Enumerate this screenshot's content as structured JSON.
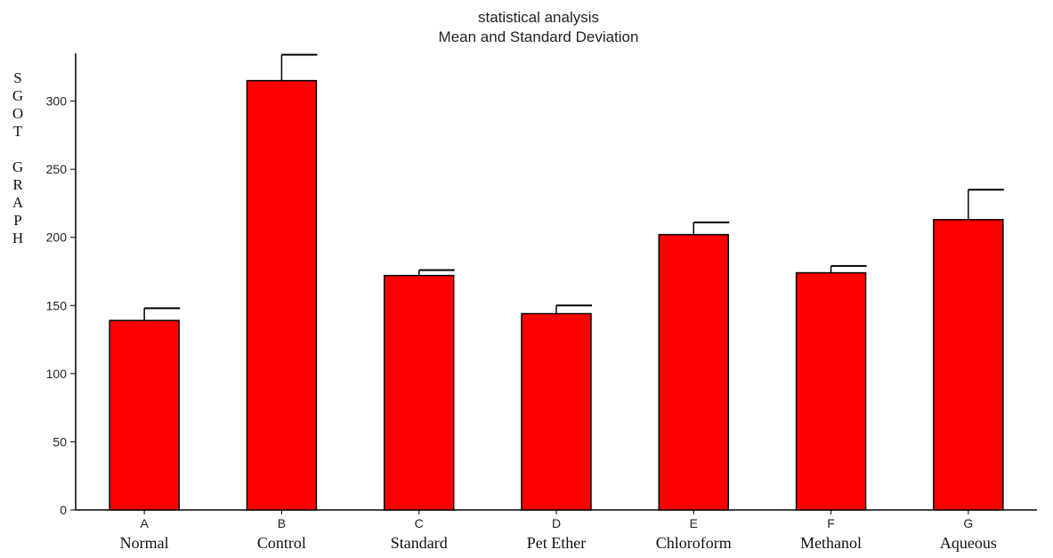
{
  "chart_data": {
    "type": "bar",
    "title": [
      "statistical analysis",
      "Mean and Standard Deviation"
    ],
    "ylabel": [
      "SGOT",
      "GRAPH"
    ],
    "xlabel": "",
    "categories": [
      "A",
      "B",
      "C",
      "D",
      "E",
      "F",
      "G"
    ],
    "category_names": [
      "Normal",
      "Control",
      "Standard",
      "Pet Ether",
      "Chloroform",
      "Methanol",
      "Aqueous"
    ],
    "series": [
      {
        "values": [
          139,
          315,
          172,
          144,
          202,
          174,
          213
        ],
        "errors": [
          9,
          19,
          4,
          6,
          9,
          5,
          22
        ],
        "color": "#ff0000"
      }
    ],
    "yticks": [
      0,
      50,
      100,
      150,
      200,
      250,
      300
    ],
    "ylim": [
      0,
      335
    ],
    "grid": false,
    "legend": "none",
    "bar_color": "#ff0000",
    "edge_color": "#000000"
  }
}
